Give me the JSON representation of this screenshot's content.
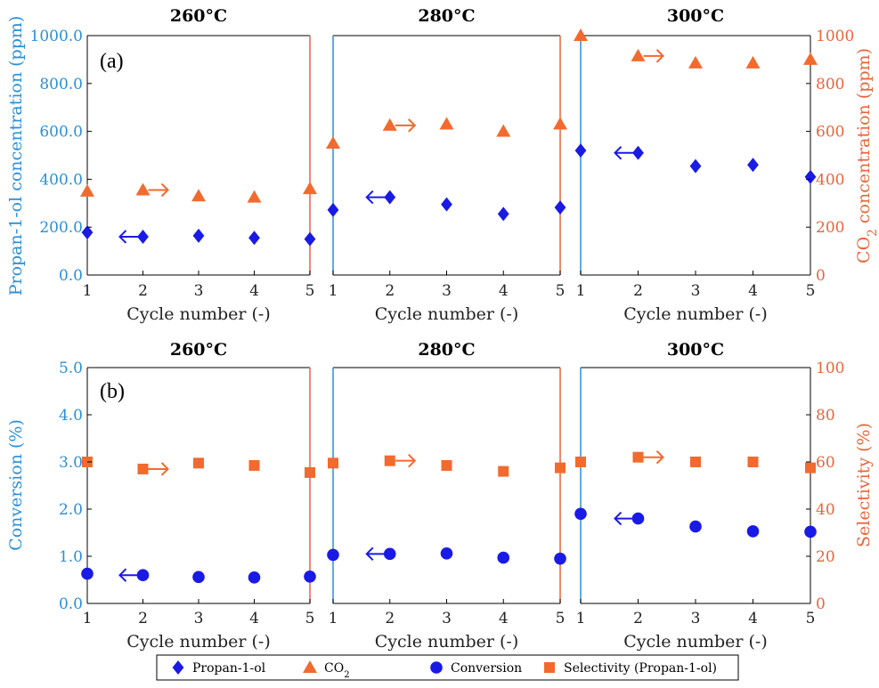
{
  "figure": {
    "legend": [
      {
        "label": "Propan-1-ol",
        "marker": "diamond",
        "color": "#1a1ae6"
      },
      {
        "label": "CO₂",
        "marker": "triangle",
        "color": "#f26a2e"
      },
      {
        "label": "Conversion",
        "marker": "circle",
        "color": "#1a1ae6"
      },
      {
        "label": "Selectivity (Propan-1-ol)",
        "marker": "square",
        "color": "#f26a2e"
      }
    ],
    "colors": {
      "left_axis": "#2a8fd6",
      "right_axis": "#e8643a",
      "blue_marker": "#1a1ae6",
      "orange_marker": "#f26a2e"
    }
  },
  "chart_data": [
    {
      "type": "scatter",
      "panel": "(a)",
      "xlabel": "Cycle number (-)",
      "ylabel_left": "Propan-1-ol concentration (ppm)",
      "ylabel_right": "CO₂ concentration (ppm)",
      "x": [
        1,
        2,
        3,
        4,
        5
      ],
      "xlim": [
        1,
        5
      ],
      "ylim_left": [
        0,
        1000
      ],
      "ylim_right": [
        0,
        1000
      ],
      "yticks_left": [
        "0.0",
        "200.0",
        "400.0",
        "600.0",
        "800.0",
        "1000.0"
      ],
      "yticks_right": [
        "0",
        "200",
        "400",
        "600",
        "800",
        "1000"
      ],
      "subplots": [
        {
          "title": "260°C",
          "series": [
            {
              "name": "Propan-1-ol",
              "axis": "left",
              "marker": "diamond",
              "values": [
                178,
                160,
                164,
                155,
                150
              ]
            },
            {
              "name": "CO₂",
              "axis": "right",
              "marker": "triangle",
              "values": [
                350,
                355,
                330,
                325,
                360
              ]
            }
          ]
        },
        {
          "title": "280°C",
          "series": [
            {
              "name": "Propan-1-ol",
              "axis": "left",
              "marker": "diamond",
              "values": [
                272,
                325,
                295,
                255,
                282
              ]
            },
            {
              "name": "CO₂",
              "axis": "right",
              "marker": "triangle",
              "values": [
                550,
                625,
                630,
                600,
                630
              ]
            }
          ]
        },
        {
          "title": "300°C",
          "series": [
            {
              "name": "Propan-1-ol",
              "axis": "left",
              "marker": "diamond",
              "values": [
                520,
                510,
                455,
                460,
                410
              ]
            },
            {
              "name": "CO₂",
              "axis": "right",
              "marker": "triangle",
              "values": [
                1000,
                915,
                885,
                885,
                900
              ]
            }
          ]
        }
      ]
    },
    {
      "type": "scatter",
      "panel": "(b)",
      "xlabel": "Cycle number (-)",
      "ylabel_left": "Conversion (%)",
      "ylabel_right": "Selectivity (%)",
      "x": [
        1,
        2,
        3,
        4,
        5
      ],
      "xlim": [
        1,
        5
      ],
      "ylim_left": [
        0,
        5
      ],
      "ylim_right": [
        0,
        100
      ],
      "yticks_left": [
        "0.0",
        "1.0",
        "2.0",
        "3.0",
        "4.0",
        "5.0"
      ],
      "yticks_right": [
        "0",
        "20",
        "40",
        "60",
        "80",
        "100"
      ],
      "subplots": [
        {
          "title": "260°C",
          "series": [
            {
              "name": "Conversion",
              "axis": "left",
              "marker": "circle",
              "values": [
                0.63,
                0.6,
                0.56,
                0.55,
                0.57
              ]
            },
            {
              "name": "Selectivity (Propan-1-ol)",
              "axis": "right",
              "marker": "square",
              "values": [
                60,
                57,
                59.5,
                58.5,
                55.5
              ]
            }
          ]
        },
        {
          "title": "280°C",
          "series": [
            {
              "name": "Conversion",
              "axis": "left",
              "marker": "circle",
              "values": [
                1.03,
                1.05,
                1.06,
                0.97,
                0.95
              ]
            },
            {
              "name": "Selectivity (Propan-1-ol)",
              "axis": "right",
              "marker": "square",
              "values": [
                59.5,
                60.5,
                58.5,
                56,
                57.5
              ]
            }
          ]
        },
        {
          "title": "300°C",
          "series": [
            {
              "name": "Conversion",
              "axis": "left",
              "marker": "circle",
              "values": [
                1.9,
                1.8,
                1.63,
                1.53,
                1.52
              ]
            },
            {
              "name": "Selectivity (Propan-1-ol)",
              "axis": "right",
              "marker": "square",
              "values": [
                60,
                62,
                60,
                60,
                57.5
              ]
            }
          ]
        }
      ]
    }
  ]
}
